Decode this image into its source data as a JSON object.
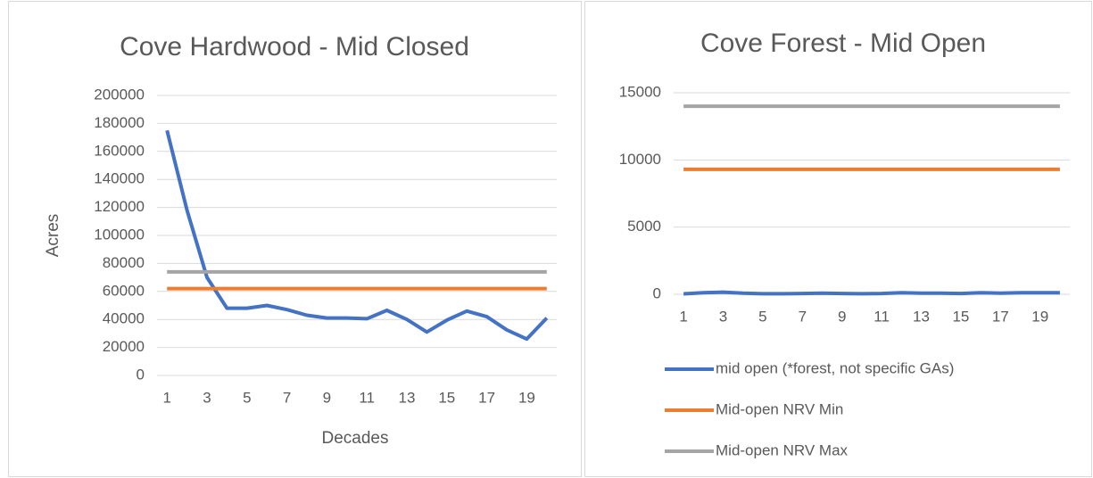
{
  "chart_data": [
    {
      "type": "line",
      "title": "Cove Hardwood - Mid Closed",
      "y_label": "Acres",
      "x_label": "Decades",
      "categories": [
        1,
        null,
        3,
        null,
        5,
        null,
        7,
        null,
        9,
        null,
        11,
        null,
        13,
        null,
        15,
        null,
        17,
        null,
        19,
        null
      ],
      "series": [
        {
          "color": "#4472c4",
          "values": [
            175000,
            118000,
            70000,
            48000,
            48000,
            50000,
            47000,
            43000,
            41000,
            41000,
            40500,
            46500,
            40000,
            31000,
            39500,
            46000,
            42000,
            32500,
            26000,
            41000
          ]
        },
        {
          "color": "#ed7d31",
          "values": [
            62000,
            62000,
            62000,
            62000,
            62000,
            62000,
            62000,
            62000,
            62000,
            62000,
            62000,
            62000,
            62000,
            62000,
            62000,
            62000,
            62000,
            62000,
            62000,
            62000
          ]
        },
        {
          "color": "#a5a5a5",
          "values": [
            74000,
            74000,
            74000,
            74000,
            74000,
            74000,
            74000,
            74000,
            74000,
            74000,
            74000,
            74000,
            74000,
            74000,
            74000,
            74000,
            74000,
            74000,
            74000,
            74000
          ]
        }
      ],
      "ylim": [
        0,
        200000
      ],
      "yticks": [
        0,
        20000,
        40000,
        60000,
        80000,
        100000,
        120000,
        140000,
        160000,
        180000,
        200000
      ],
      "grid": true
    },
    {
      "type": "line",
      "title": "Cove Forest - Mid Open",
      "legend": "bottom",
      "categories": [
        1,
        null,
        3,
        null,
        5,
        null,
        7,
        null,
        9,
        null,
        11,
        null,
        13,
        null,
        15,
        null,
        17,
        null,
        19,
        null
      ],
      "series": [
        {
          "name": "mid open (*forest, not specific GAs)",
          "color": "#4472c4",
          "values": [
            30,
            120,
            160,
            80,
            40,
            40,
            60,
            80,
            60,
            40,
            60,
            120,
            80,
            80,
            60,
            120,
            80,
            120,
            120,
            120
          ]
        },
        {
          "name": "Mid-open NRV Min",
          "color": "#ed7d31",
          "values": [
            9300,
            9300,
            9300,
            9300,
            9300,
            9300,
            9300,
            9300,
            9300,
            9300,
            9300,
            9300,
            9300,
            9300,
            9300,
            9300,
            9300,
            9300,
            9300,
            9300
          ]
        },
        {
          "name": "Mid-open NRV Max",
          "color": "#a5a5a5",
          "values": [
            14000,
            14000,
            14000,
            14000,
            14000,
            14000,
            14000,
            14000,
            14000,
            14000,
            14000,
            14000,
            14000,
            14000,
            14000,
            14000,
            14000,
            14000,
            14000,
            14000
          ]
        }
      ],
      "ylim": [
        0,
        15000
      ],
      "yticks": [
        0,
        5000,
        10000,
        15000
      ],
      "grid": true
    }
  ]
}
